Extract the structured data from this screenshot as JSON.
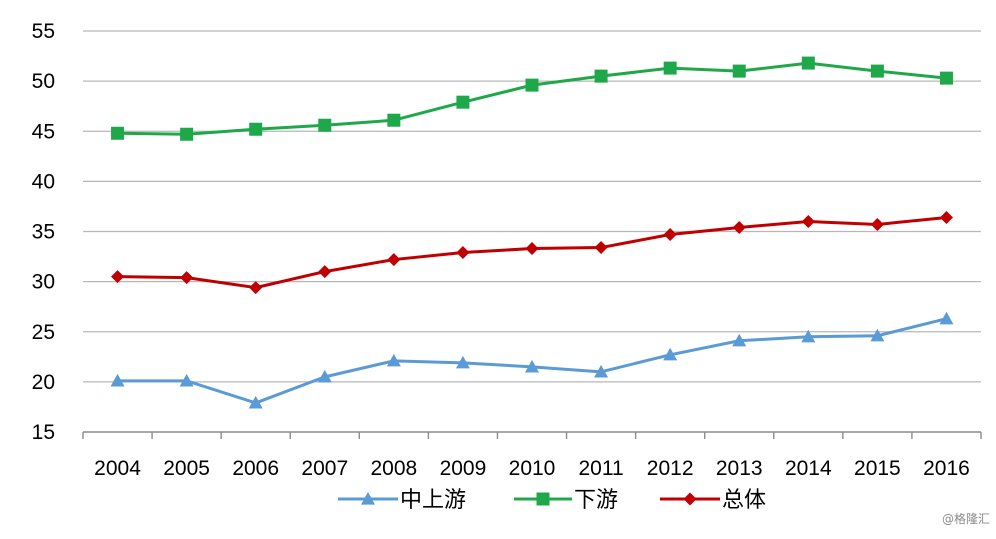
{
  "watermark": "@格隆汇",
  "chart_data": {
    "type": "line",
    "title": "",
    "xlabel": "",
    "ylabel": "",
    "categories": [
      "2004",
      "2005",
      "2006",
      "2007",
      "2008",
      "2009",
      "2010",
      "2011",
      "2012",
      "2013",
      "2014",
      "2015",
      "2016"
    ],
    "ylim": [
      15,
      55
    ],
    "yticks": [
      15,
      20,
      25,
      30,
      35,
      40,
      45,
      50,
      55
    ],
    "grid": true,
    "legend_position": "bottom",
    "series": [
      {
        "name": "中上游",
        "color": "#5b9bd5",
        "marker": "triangle",
        "values": [
          20.1,
          20.1,
          17.9,
          20.5,
          22.1,
          21.9,
          21.5,
          21.0,
          22.7,
          24.1,
          24.5,
          24.6,
          26.3
        ]
      },
      {
        "name": "下游",
        "color": "#1ea84a",
        "marker": "square",
        "values": [
          44.8,
          44.7,
          45.2,
          45.6,
          46.1,
          47.9,
          49.6,
          50.5,
          51.3,
          51.0,
          51.8,
          51.0,
          50.3
        ]
      },
      {
        "name": "总体",
        "color": "#c00000",
        "marker": "diamond",
        "values": [
          30.5,
          30.4,
          29.4,
          31.0,
          32.2,
          32.9,
          33.3,
          33.4,
          34.7,
          35.4,
          36.0,
          35.7,
          36.4
        ]
      }
    ]
  }
}
